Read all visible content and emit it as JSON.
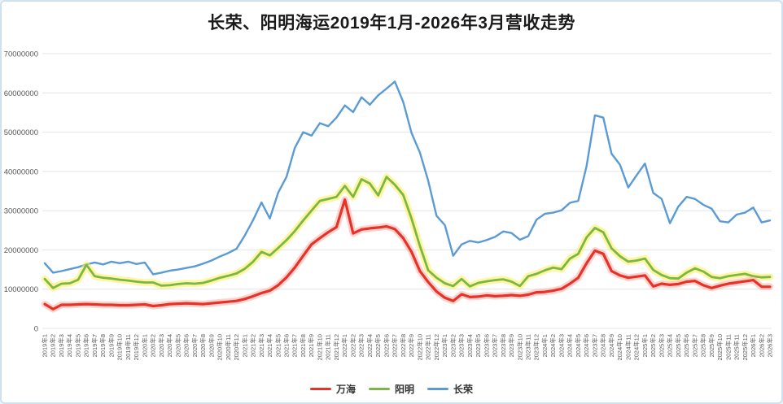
{
  "title": "长荣、阳明海运2019年1月-2026年3月营收走势",
  "chart_data": {
    "type": "line",
    "title": "长荣、阳明海运2019年1月-2026年3月营收走势",
    "xlabel": "",
    "ylabel": "",
    "ylim": [
      0,
      70000000
    ],
    "ytick_step": 10000000,
    "ytick_labels": [
      "0",
      "10000000",
      "20000000",
      "30000000",
      "40000000",
      "50000000",
      "60000000",
      "70000000"
    ],
    "grid": true,
    "legend_position": "bottom",
    "categories": [
      "2019年1",
      "2019年2",
      "2019年3",
      "2019年4",
      "2019年5",
      "2019年6",
      "2019年7",
      "2019年8",
      "2019年9",
      "2019年10",
      "2019年11",
      "2019年12",
      "2020年1",
      "2020年2",
      "2020年3",
      "2020年4",
      "2020年5",
      "2020年6",
      "2020年7",
      "2020年8",
      "2020年9",
      "2020年10",
      "2020年11",
      "2020年12",
      "2021年1",
      "2021年2",
      "2021年3",
      "2021年4",
      "2021年5",
      "2021年6",
      "2021年7",
      "2021年8",
      "2021年9",
      "2021年10",
      "2021年11",
      "2021年12",
      "2022年1",
      "2022年2",
      "2022年3",
      "2022年4",
      "2022年5",
      "2022年6",
      "2022年7",
      "2022年8",
      "2022年9",
      "2022年10",
      "2022年11",
      "2022年12",
      "2023年1",
      "2023年2",
      "2023年3",
      "2023年4",
      "2023年5",
      "2023年6",
      "2023年7",
      "2023年8",
      "2023年9",
      "2023年10",
      "2023年11",
      "2023年12",
      "2024年1",
      "2024年2",
      "2024年3",
      "2024年4",
      "2024年5",
      "2024年6",
      "2023年7",
      "2024年8",
      "2024年9",
      "2024年10",
      "2024年11",
      "2024年12",
      "2025年1",
      "2025年2",
      "2025年3",
      "2025年4",
      "2025年5",
      "2025年6",
      "2025年7",
      "2025年8",
      "2025年9",
      "2025年10",
      "2025年11",
      "2025年11",
      "2025年12",
      "2026年1",
      "2026年2",
      "2026年3"
    ],
    "series": [
      {
        "name": "万海",
        "color": "#e63229",
        "glow_color": "#ffb0a8",
        "values": [
          6200000,
          4900000,
          6000000,
          6000000,
          6100000,
          6200000,
          6100000,
          6000000,
          6000000,
          5900000,
          5900000,
          6000000,
          6100000,
          5700000,
          5900000,
          6200000,
          6300000,
          6400000,
          6300000,
          6200000,
          6400000,
          6600000,
          6800000,
          7000000,
          7500000,
          8200000,
          9000000,
          9600000,
          11000000,
          13000000,
          15500000,
          18500000,
          21400000,
          23000000,
          24500000,
          25800000,
          32800000,
          24200000,
          25200000,
          25500000,
          25700000,
          26000000,
          25300000,
          23000000,
          19500000,
          14600000,
          11800000,
          9400000,
          7800000,
          7000000,
          8700000,
          8000000,
          8100000,
          8400000,
          8200000,
          8300000,
          8500000,
          8300000,
          8600000,
          9200000,
          9300000,
          9600000,
          10100000,
          11400000,
          12900000,
          16600000,
          19800000,
          19000000,
          14600000,
          13500000,
          12900000,
          13200000,
          13500000,
          10700000,
          11400000,
          11100000,
          11300000,
          11900000,
          12100000,
          11000000,
          10300000,
          10900000,
          11400000,
          11700000,
          12000000,
          12300000,
          10600000,
          10600000
        ]
      },
      {
        "name": "阳明",
        "color": "#7ab648",
        "glow_color": "#ffee54",
        "values": [
          12600000,
          10300000,
          11400000,
          11500000,
          12400000,
          16200000,
          13300000,
          12900000,
          12700000,
          12400000,
          12200000,
          11900000,
          11700000,
          11700000,
          10900000,
          11000000,
          11300000,
          11500000,
          11400000,
          11600000,
          12200000,
          12900000,
          13400000,
          14000000,
          15200000,
          17000000,
          19500000,
          18600000,
          20500000,
          22500000,
          24800000,
          27500000,
          30000000,
          32500000,
          33000000,
          33500000,
          36300000,
          33500000,
          38000000,
          36900000,
          33900000,
          38600000,
          36600000,
          34000000,
          28000000,
          21000000,
          14800000,
          12900000,
          11500000,
          10800000,
          12600000,
          10700000,
          11600000,
          12000000,
          12300000,
          12500000,
          11900000,
          10800000,
          13300000,
          13900000,
          14800000,
          15500000,
          15100000,
          17800000,
          19000000,
          23200000,
          25600000,
          24500000,
          20400000,
          18400000,
          17000000,
          17300000,
          17800000,
          14900000,
          13600000,
          12800000,
          12700000,
          14200000,
          15300000,
          14500000,
          13100000,
          12800000,
          13300000,
          13600000,
          13900000,
          13300000,
          13000000,
          13100000
        ]
      },
      {
        "name": "长荣",
        "color": "#5b9bd5",
        "glow_color": null,
        "values": [
          16600000,
          14200000,
          14600000,
          15100000,
          15600000,
          16300000,
          16800000,
          16300000,
          17000000,
          16600000,
          17000000,
          16400000,
          16800000,
          13800000,
          14200000,
          14700000,
          15000000,
          15400000,
          15800000,
          16500000,
          17300000,
          18300000,
          19200000,
          20300000,
          23700000,
          27600000,
          32100000,
          28000000,
          34600000,
          38600000,
          46000000,
          50000000,
          49100000,
          52300000,
          51500000,
          53700000,
          56800000,
          55100000,
          58900000,
          57000000,
          59400000,
          61100000,
          62900000,
          57700000,
          49800000,
          44800000,
          37600000,
          28700000,
          26300000,
          18500000,
          21400000,
          22300000,
          21900000,
          22500000,
          23300000,
          24700000,
          24300000,
          22600000,
          23500000,
          27700000,
          29200000,
          29500000,
          30100000,
          32000000,
          32500000,
          41400000,
          54300000,
          53700000,
          44500000,
          41700000,
          35900000,
          39000000,
          42000000,
          34500000,
          33000000,
          26800000,
          31000000,
          33500000,
          33000000,
          31500000,
          30500000,
          27300000,
          27000000,
          29000000,
          29500000,
          30800000,
          27000000,
          27500000
        ]
      }
    ]
  },
  "legend": {
    "items": [
      "万海",
      "阳明",
      "长荣"
    ]
  }
}
